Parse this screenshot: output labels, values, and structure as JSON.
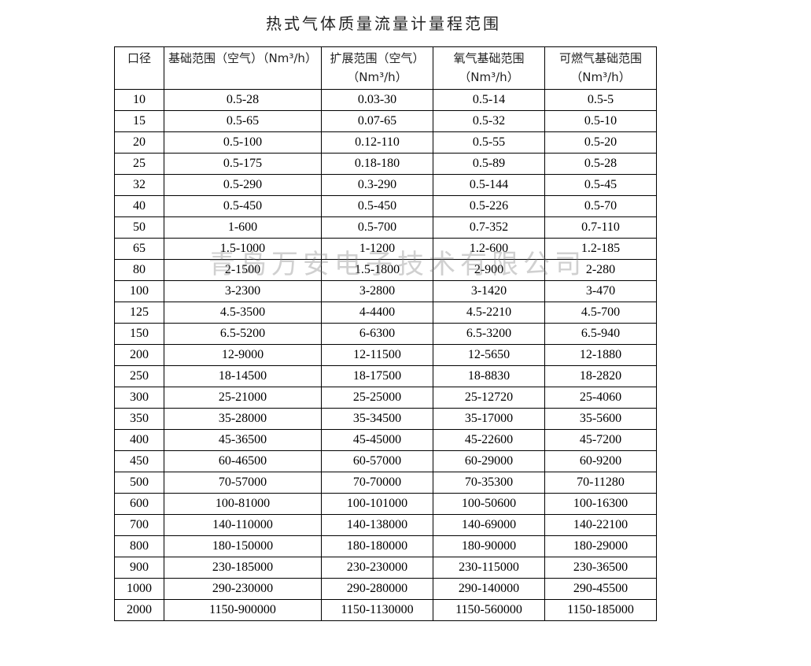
{
  "title": "热式气体质量流量计量程范围",
  "watermark": "青岛万安电子技术有限公司",
  "table": {
    "headers": [
      "口径",
      "基础范围（空气）（Nm³/h）",
      "扩展范围（空气）（Nm³/h）",
      "氧气基础范围（Nm³/h）",
      "可燃气基础范围（Nm³/h）"
    ],
    "rows": [
      [
        "10",
        "0.5-28",
        "0.03-30",
        "0.5-14",
        "0.5-5"
      ],
      [
        "15",
        "0.5-65",
        "0.07-65",
        "0.5-32",
        "0.5-10"
      ],
      [
        "20",
        "0.5-100",
        "0.12-110",
        "0.5-55",
        "0.5-20"
      ],
      [
        "25",
        "0.5-175",
        "0.18-180",
        "0.5-89",
        "0.5-28"
      ],
      [
        "32",
        "0.5-290",
        "0.3-290",
        "0.5-144",
        "0.5-45"
      ],
      [
        "40",
        "0.5-450",
        "0.5-450",
        "0.5-226",
        "0.5-70"
      ],
      [
        "50",
        "1-600",
        "0.5-700",
        "0.7-352",
        "0.7-110"
      ],
      [
        "65",
        "1.5-1000",
        "1-1200",
        "1.2-600",
        "1.2-185"
      ],
      [
        "80",
        "2-1500",
        "1.5-1800",
        "2-900",
        "2-280"
      ],
      [
        "100",
        "3-2300",
        "3-2800",
        "3-1420",
        "3-470"
      ],
      [
        "125",
        "4.5-3500",
        "4-4400",
        "4.5-2210",
        "4.5-700"
      ],
      [
        "150",
        "6.5-5200",
        "6-6300",
        "6.5-3200",
        "6.5-940"
      ],
      [
        "200",
        "12-9000",
        "12-11500",
        "12-5650",
        "12-1880"
      ],
      [
        "250",
        "18-14500",
        "18-17500",
        "18-8830",
        "18-2820"
      ],
      [
        "300",
        "25-21000",
        "25-25000",
        "25-12720",
        "25-4060"
      ],
      [
        "350",
        "35-28000",
        "35-34500",
        "35-17000",
        "35-5600"
      ],
      [
        "400",
        "45-36500",
        "45-45000",
        "45-22600",
        "45-7200"
      ],
      [
        "450",
        "60-46500",
        "60-57000",
        "60-29000",
        "60-9200"
      ],
      [
        "500",
        "70-57000",
        "70-70000",
        "70-35300",
        "70-11280"
      ],
      [
        "600",
        "100-81000",
        "100-101000",
        "100-50600",
        "100-16300"
      ],
      [
        "700",
        "140-110000",
        "140-138000",
        "140-69000",
        "140-22100"
      ],
      [
        "800",
        "180-150000",
        "180-180000",
        "180-90000",
        "180-29000"
      ],
      [
        "900",
        "230-185000",
        "230-230000",
        "230-115000",
        "230-36500"
      ],
      [
        "1000",
        "290-230000",
        "290-280000",
        "290-140000",
        "290-45500"
      ],
      [
        "2000",
        "1150-900000",
        "1150-1130000",
        "1150-560000",
        "1150-185000"
      ]
    ]
  }
}
